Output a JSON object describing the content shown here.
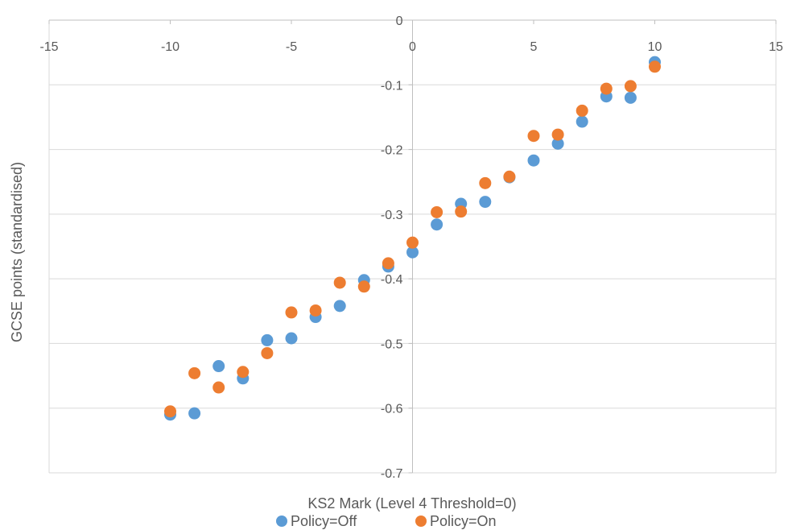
{
  "chart_data": {
    "type": "scatter",
    "title": "",
    "xlabel": "KS2 Mark (Level 4 Threshold=0)",
    "ylabel": "GCSE points (standardised)",
    "xlim": [
      -15,
      15
    ],
    "ylim": [
      -0.7,
      0
    ],
    "x_ticks": [
      -15,
      -10,
      -5,
      0,
      5,
      10,
      15
    ],
    "y_ticks": [
      0,
      -0.1,
      -0.2,
      -0.3,
      -0.4,
      -0.5,
      -0.6,
      -0.7
    ],
    "x_tick_labels": [
      "-15",
      "-10",
      "-5",
      "0",
      "5",
      "10",
      "15"
    ],
    "y_tick_labels": [
      "0",
      "-0.1",
      "-0.2",
      "-0.3",
      "-0.4",
      "-0.5",
      "-0.6",
      "-0.7"
    ],
    "grid": "horizontal",
    "legend_position": "bottom",
    "series": [
      {
        "name": "Policy=Off",
        "color": "#5B9BD5",
        "points": [
          [
            -10,
            -0.61
          ],
          [
            -9,
            -0.608
          ],
          [
            -8,
            -0.535
          ],
          [
            -7,
            -0.554
          ],
          [
            -6,
            -0.495
          ],
          [
            -5,
            -0.492
          ],
          [
            -4,
            -0.459
          ],
          [
            -3,
            -0.442
          ],
          [
            -2,
            -0.402
          ],
          [
            -1,
            -0.381
          ],
          [
            0,
            -0.359
          ],
          [
            1,
            -0.316
          ],
          [
            2,
            -0.284
          ],
          [
            3,
            -0.281
          ],
          [
            4,
            -0.243
          ],
          [
            5,
            -0.217
          ],
          [
            6,
            -0.191
          ],
          [
            7,
            -0.157
          ],
          [
            8,
            -0.118
          ],
          [
            9,
            -0.12
          ],
          [
            10,
            -0.065
          ]
        ]
      },
      {
        "name": "Policy=On",
        "color": "#ED7D31",
        "points": [
          [
            -10,
            -0.605
          ],
          [
            -9,
            -0.546
          ],
          [
            -8,
            -0.568
          ],
          [
            -7,
            -0.544
          ],
          [
            -6,
            -0.515
          ],
          [
            -5,
            -0.452
          ],
          [
            -4,
            -0.449
          ],
          [
            -3,
            -0.406
          ],
          [
            -2,
            -0.412
          ],
          [
            -1,
            -0.376
          ],
          [
            0,
            -0.344
          ],
          [
            1,
            -0.297
          ],
          [
            2,
            -0.296
          ],
          [
            3,
            -0.252
          ],
          [
            4,
            -0.242
          ],
          [
            5,
            -0.179
          ],
          [
            6,
            -0.177
          ],
          [
            7,
            -0.14
          ],
          [
            8,
            -0.106
          ],
          [
            9,
            -0.102
          ],
          [
            10,
            -0.072
          ]
        ]
      }
    ]
  },
  "legend": {
    "items": [
      {
        "label": "Policy=Off",
        "color": "#5B9BD5"
      },
      {
        "label": "Policy=On",
        "color": "#ED7D31"
      }
    ]
  }
}
